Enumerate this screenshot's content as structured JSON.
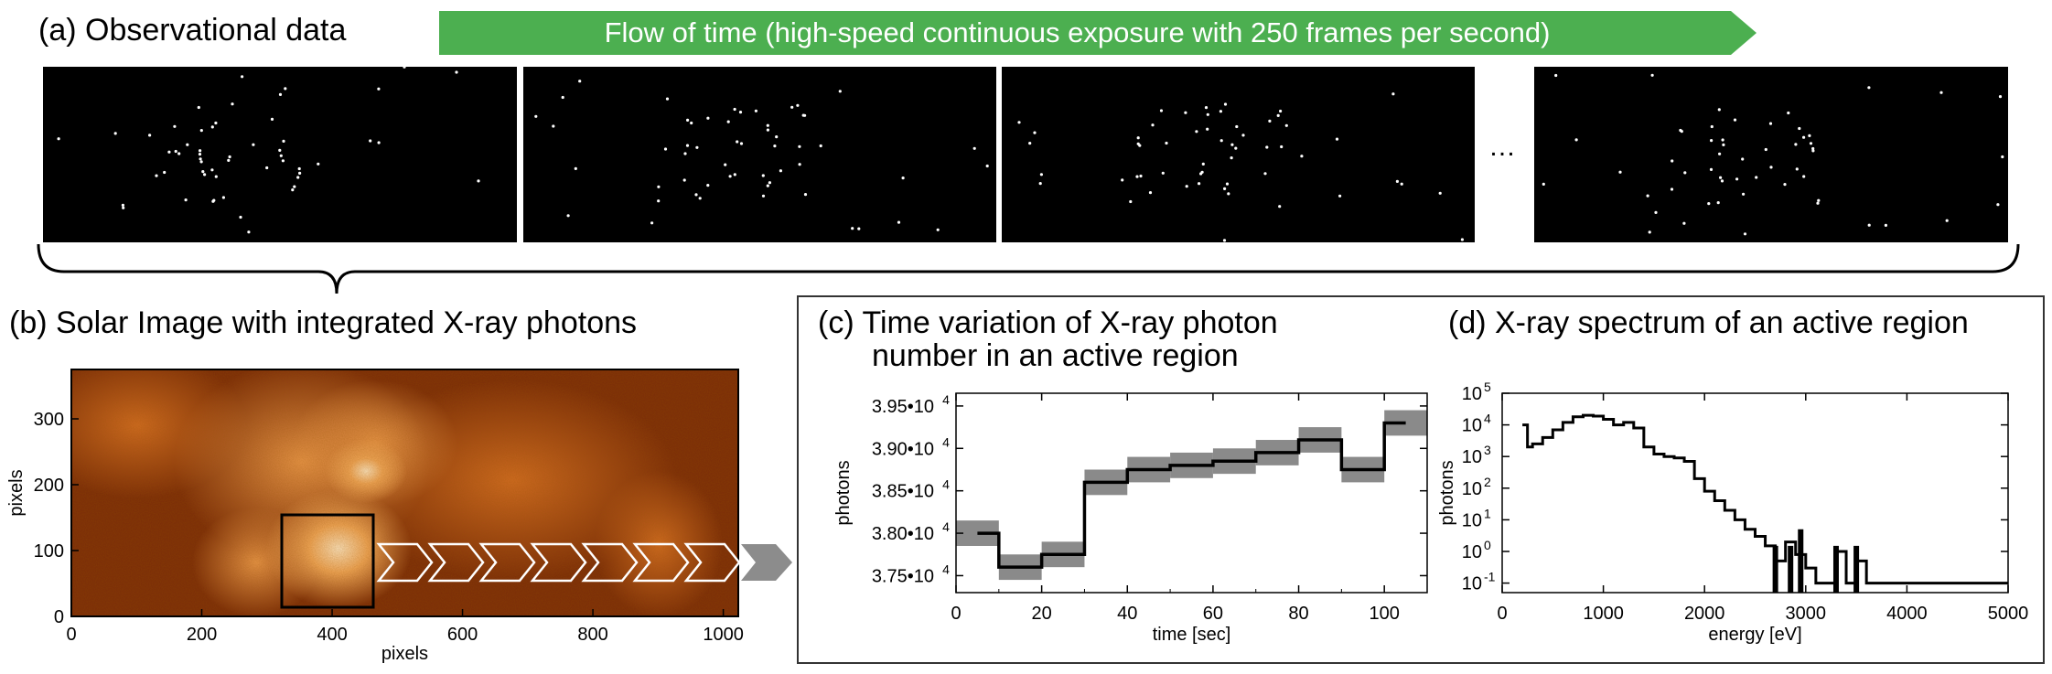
{
  "panel_a": {
    "title": "(a) Observational data",
    "banner_text": "Flow of time (high-speed continuous exposure with 250 frames per second)",
    "banner_color": "#4caf50",
    "ellipsis": "…"
  },
  "panel_b": {
    "title": "(b) Solar Image with integrated X-ray photons",
    "xlabel": "pixels",
    "ylabel": "pixels",
    "xticks": [
      "0",
      "200",
      "400",
      "600",
      "800",
      "1000"
    ],
    "yticks": [
      "0",
      "100",
      "200",
      "300"
    ]
  },
  "panel_c": {
    "title_line1": "(c) Time variation of X-ray photon",
    "title_line2": "number in an active region",
    "xlabel": "time [sec]",
    "ylabel": "photons",
    "xticks": [
      "0",
      "20",
      "40",
      "60",
      "80",
      "100"
    ],
    "yticks": [
      {
        "mant": "3.75•10",
        "exp": "4"
      },
      {
        "mant": "3.80•10",
        "exp": "4"
      },
      {
        "mant": "3.85•10",
        "exp": "4"
      },
      {
        "mant": "3.90•10",
        "exp": "4"
      },
      {
        "mant": "3.95•10",
        "exp": "4"
      }
    ]
  },
  "panel_d": {
    "title": "(d) X-ray spectrum of an active region",
    "xlabel": "energy [eV]",
    "ylabel": "photons",
    "xticks": [
      "0",
      "1000",
      "2000",
      "3000",
      "4000",
      "5000"
    ],
    "yticks": [
      {
        "mant": "10",
        "exp": "-1"
      },
      {
        "mant": "10",
        "exp": "0"
      },
      {
        "mant": "10",
        "exp": "1"
      },
      {
        "mant": "10",
        "exp": "2"
      },
      {
        "mant": "10",
        "exp": "3"
      },
      {
        "mant": "10",
        "exp": "4"
      },
      {
        "mant": "10",
        "exp": "5"
      }
    ]
  },
  "chart_data": [
    {
      "type": "line",
      "xlim": [
        0,
        110
      ],
      "ylim": [
        37300,
        39650
      ],
      "x": [
        5,
        15,
        25,
        35,
        45,
        55,
        65,
        75,
        85,
        95,
        105
      ],
      "values": [
        38000,
        37600,
        37750,
        38600,
        38750,
        38800,
        38850,
        38950,
        39100,
        38750,
        39300
      ],
      "error": 150,
      "grid": false
    },
    {
      "type": "line",
      "xlim": [
        0,
        5000
      ],
      "ylog": true,
      "ylim": [
        0.05,
        100000
      ],
      "x": [
        200,
        250,
        300,
        400,
        500,
        600,
        700,
        800,
        900,
        1000,
        1100,
        1200,
        1300,
        1400,
        1500,
        1600,
        1700,
        1800,
        1900,
        2000,
        2100,
        2200,
        2300,
        2400,
        2500,
        2600,
        2700,
        2800,
        2900,
        3000,
        3100,
        3200,
        3300,
        3400,
        3500,
        3600,
        4000,
        4500,
        5000
      ],
      "values": [
        10000,
        2000,
        2500,
        4000,
        7000,
        12000,
        18000,
        20000,
        19000,
        15000,
        10000,
        12000,
        8000,
        2000,
        1200,
        1000,
        900,
        700,
        200,
        80,
        40,
        20,
        10,
        5,
        3,
        1.5,
        0.5,
        2,
        0.8,
        0.3,
        0.1,
        0.1,
        1,
        0.1,
        0.5,
        0.1,
        0.1,
        0.1,
        0.1
      ],
      "grid": false
    }
  ]
}
